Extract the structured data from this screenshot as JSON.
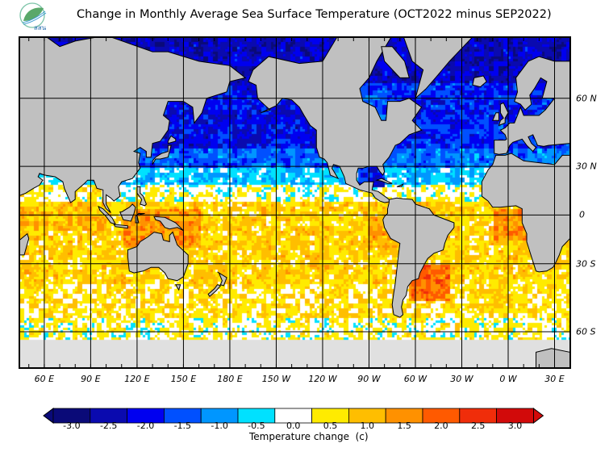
{
  "header": {
    "title": "Change in Monthly Average Sea Surface Temperature (OCT2022 minus SEP2022)",
    "logo_text": "สสน"
  },
  "map": {
    "projection": "mercator",
    "lon_labels": [
      "60 E",
      "90 E",
      "120 E",
      "150 E",
      "180 E",
      "150 W",
      "120 W",
      "90 W",
      "60 W",
      "30 W",
      "0 W",
      "30 E"
    ],
    "lat_labels": [
      "60 N",
      "30 N",
      "0",
      "30 S",
      "60 S"
    ],
    "land_color": "#c0c0c0",
    "ice_color": "#e0e0e0",
    "coast_color": "#000000"
  },
  "colorbar": {
    "title": "Temperature change  (c)",
    "ticks": [
      "-3.0",
      "-2.5",
      "-2.0",
      "-1.5",
      "-1.0",
      "-0.5",
      "0.0",
      "0.5",
      "1.0",
      "1.5",
      "2.0",
      "2.5",
      "3.0"
    ],
    "levels": [
      -3.0,
      -2.5,
      -2.0,
      -1.5,
      -1.0,
      -0.5,
      0.0,
      0.5,
      1.0,
      1.5,
      2.0,
      2.5,
      3.0
    ],
    "colors": [
      "#0a0a78",
      "#0a0aaf",
      "#0000f0",
      "#0050ff",
      "#0096ff",
      "#00e1ff",
      "#ffffff",
      "#ffeb00",
      "#ffbe00",
      "#ff9100",
      "#ff5a00",
      "#f02d0a",
      "#d20a0a"
    ],
    "extend": "both"
  }
}
